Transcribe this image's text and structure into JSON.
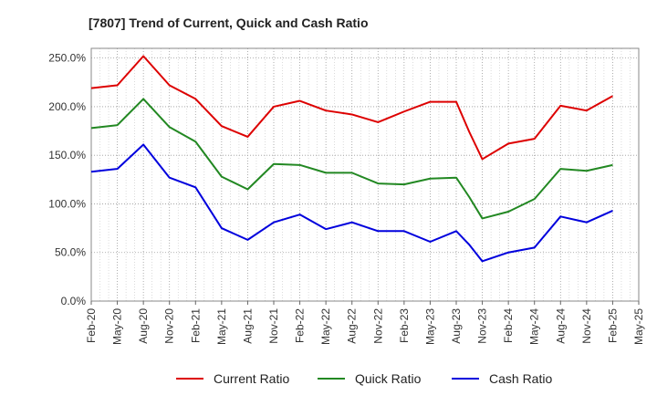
{
  "chart_data": {
    "type": "line",
    "title": "[7807]  Trend of Current, Quick and Cash Ratio",
    "xlabel": "",
    "ylabel": "",
    "ylim": [
      0,
      260
    ],
    "yticks": [
      0,
      50,
      100,
      150,
      200,
      250
    ],
    "ytick_labels": [
      "0.0%",
      "50.0%",
      "100.0%",
      "150.0%",
      "200.0%",
      "250.0%"
    ],
    "xtick_labels": [
      "Feb-20",
      "May-20",
      "Aug-20",
      "Nov-20",
      "Feb-21",
      "May-21",
      "Aug-21",
      "Nov-21",
      "Feb-22",
      "May-22",
      "Aug-22",
      "Nov-22",
      "Feb-23",
      "May-23",
      "Aug-23",
      "Nov-23",
      "Feb-24",
      "May-24",
      "Aug-24",
      "Nov-24",
      "Feb-25",
      "May-25"
    ],
    "grid": true,
    "legend_position": "bottom-center",
    "x": [
      0,
      1,
      2,
      3,
      4,
      5,
      6,
      7,
      8,
      9,
      10,
      11,
      12,
      13,
      14,
      14.5,
      15,
      16,
      17,
      18,
      19,
      20
    ],
    "series": [
      {
        "name": "Current Ratio",
        "color": "#dd0000",
        "values": [
          219,
          222,
          252,
          222,
          208,
          180,
          169,
          200,
          206,
          196,
          192,
          184,
          195,
          205,
          205,
          174,
          146,
          162,
          167,
          201,
          196,
          211
        ]
      },
      {
        "name": "Quick Ratio",
        "color": "#228822",
        "values": [
          178,
          181,
          208,
          179,
          164,
          128,
          115,
          141,
          140,
          132,
          132,
          121,
          120,
          126,
          127,
          107,
          85,
          92,
          105,
          136,
          134,
          140
        ]
      },
      {
        "name": "Cash Ratio",
        "color": "#0000dd",
        "values": [
          133,
          136,
          161,
          127,
          117,
          75,
          63,
          81,
          89,
          74,
          81,
          72,
          72,
          61,
          72,
          58,
          41,
          50,
          55,
          87,
          81,
          93
        ]
      }
    ]
  }
}
